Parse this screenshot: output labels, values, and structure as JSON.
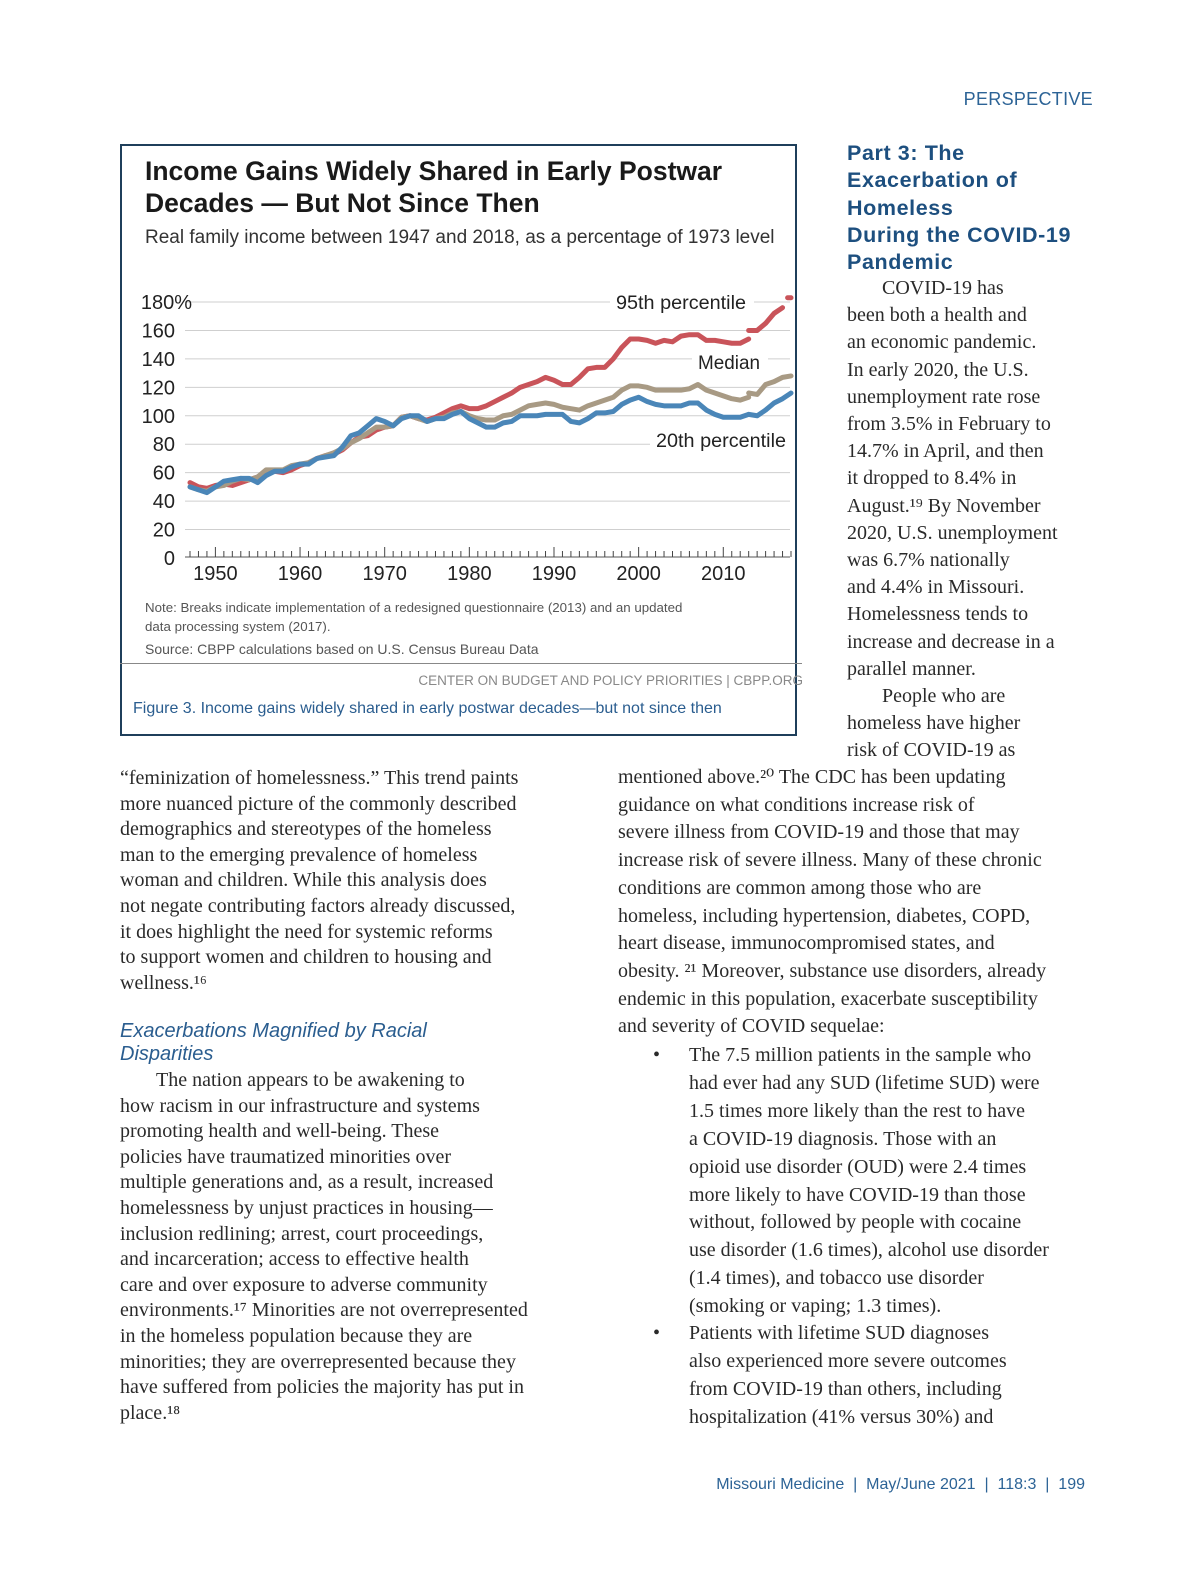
{
  "running_head": "PERSPECTIVE",
  "figure": {
    "caption": "Figure 3. Income gains widely shared in early postwar decades—but not since then"
  },
  "chart_data": {
    "type": "line",
    "title": "Income Gains Widely Shared in Early Postwar\nDecades — But Not Since Then",
    "subtitle": "Real family income between 1947 and 2018, as a percentage of 1973 level",
    "xlim": [
      1947,
      2018
    ],
    "ylim": [
      0,
      180
    ],
    "yticks": [
      {
        "v": 0,
        "label": "0"
      },
      {
        "v": 20,
        "label": "20"
      },
      {
        "v": 40,
        "label": "40"
      },
      {
        "v": 60,
        "label": "60"
      },
      {
        "v": 80,
        "label": "80"
      },
      {
        "v": 100,
        "label": "100"
      },
      {
        "v": 120,
        "label": "120"
      },
      {
        "v": 140,
        "label": "140"
      },
      {
        "v": 160,
        "label": "160"
      },
      {
        "v": 180,
        "label": "180%"
      }
    ],
    "xticks": [
      {
        "v": 1950,
        "label": "1950"
      },
      {
        "v": 1960,
        "label": "1960"
      },
      {
        "v": 1970,
        "label": "1970"
      },
      {
        "v": 1980,
        "label": "1980"
      },
      {
        "v": 1990,
        "label": "1990"
      },
      {
        "v": 2000,
        "label": "2000"
      },
      {
        "v": 2010,
        "label": "2010"
      }
    ],
    "grid": true,
    "series": [
      {
        "name": "95th percentile",
        "color": "#c9545a",
        "segments": [
          [
            [
              1947,
              53
            ],
            [
              1948,
              50
            ],
            [
              1949,
              49
            ],
            [
              1950,
              51
            ],
            [
              1951,
              52
            ],
            [
              1952,
              51
            ],
            [
              1953,
              53
            ],
            [
              1954,
              55
            ],
            [
              1955,
              57
            ],
            [
              1956,
              60
            ],
            [
              1957,
              61
            ],
            [
              1958,
              60
            ],
            [
              1959,
              62
            ],
            [
              1960,
              65
            ],
            [
              1961,
              67
            ],
            [
              1962,
              70
            ],
            [
              1963,
              72
            ],
            [
              1964,
              73
            ],
            [
              1965,
              76
            ],
            [
              1966,
              81
            ],
            [
              1967,
              85
            ],
            [
              1968,
              86
            ],
            [
              1969,
              90
            ],
            [
              1970,
              92
            ],
            [
              1971,
              93
            ],
            [
              1972,
              99
            ],
            [
              1973,
              100
            ],
            [
              1974,
              98
            ],
            [
              1975,
              97
            ],
            [
              1976,
              99
            ],
            [
              1977,
              102
            ],
            [
              1978,
              105
            ],
            [
              1979,
              107
            ],
            [
              1980,
              105
            ],
            [
              1981,
              105
            ],
            [
              1982,
              107
            ],
            [
              1983,
              110
            ],
            [
              1984,
              113
            ],
            [
              1985,
              116
            ],
            [
              1986,
              120
            ],
            [
              1987,
              122
            ],
            [
              1988,
              124
            ],
            [
              1989,
              127
            ],
            [
              1990,
              125
            ],
            [
              1991,
              122
            ],
            [
              1992,
              122
            ],
            [
              1993,
              127
            ],
            [
              1994,
              133
            ],
            [
              1995,
              134
            ],
            [
              1996,
              134
            ],
            [
              1997,
              140
            ],
            [
              1998,
              148
            ],
            [
              1999,
              154
            ],
            [
              2000,
              154
            ],
            [
              2001,
              153
            ],
            [
              2002,
              151
            ],
            [
              2003,
              153
            ],
            [
              2004,
              152
            ],
            [
              2005,
              156
            ],
            [
              2006,
              157
            ],
            [
              2007,
              157
            ],
            [
              2008,
              153
            ],
            [
              2009,
              153
            ],
            [
              2010,
              152
            ],
            [
              2011,
              151
            ],
            [
              2012,
              151
            ],
            [
              2013,
              154
            ]
          ],
          [
            [
              2013,
              160
            ],
            [
              2014,
              160
            ],
            [
              2015,
              165
            ],
            [
              2016,
              172
            ],
            [
              2017,
              176
            ]
          ],
          [
            [
              2017.6,
              183
            ],
            [
              2018,
              183
            ]
          ]
        ]
      },
      {
        "name": "Median",
        "color": "#a89a84",
        "segments": [
          [
            [
              1947,
              50
            ],
            [
              1948,
              48
            ],
            [
              1949,
              47
            ],
            [
              1950,
              50
            ],
            [
              1951,
              51
            ],
            [
              1952,
              54
            ],
            [
              1953,
              56
            ],
            [
              1954,
              55
            ],
            [
              1955,
              57
            ],
            [
              1956,
              62
            ],
            [
              1957,
              62
            ],
            [
              1958,
              62
            ],
            [
              1959,
              65
            ],
            [
              1960,
              66
            ],
            [
              1961,
              67
            ],
            [
              1962,
              70
            ],
            [
              1963,
              72
            ],
            [
              1964,
              74
            ],
            [
              1965,
              77
            ],
            [
              1966,
              81
            ],
            [
              1967,
              84
            ],
            [
              1968,
              88
            ],
            [
              1969,
              92
            ],
            [
              1970,
              92
            ],
            [
              1971,
              93
            ],
            [
              1972,
              99
            ],
            [
              1973,
              100
            ],
            [
              1974,
              98
            ],
            [
              1975,
              96
            ],
            [
              1976,
              98
            ],
            [
              1977,
              99
            ],
            [
              1978,
              102
            ],
            [
              1979,
              103
            ],
            [
              1980,
              100
            ],
            [
              1981,
              98
            ],
            [
              1982,
              97
            ],
            [
              1983,
              97
            ],
            [
              1984,
              100
            ],
            [
              1985,
              101
            ],
            [
              1986,
              104
            ],
            [
              1987,
              107
            ],
            [
              1988,
              108
            ],
            [
              1989,
              109
            ],
            [
              1990,
              108
            ],
            [
              1991,
              106
            ],
            [
              1992,
              105
            ],
            [
              1993,
              104
            ],
            [
              1994,
              107
            ],
            [
              1995,
              109
            ],
            [
              1996,
              111
            ],
            [
              1997,
              113
            ],
            [
              1998,
              118
            ],
            [
              1999,
              121
            ],
            [
              2000,
              121
            ],
            [
              2001,
              120
            ],
            [
              2002,
              118
            ],
            [
              2003,
              118
            ],
            [
              2004,
              118
            ],
            [
              2005,
              118
            ],
            [
              2006,
              119
            ],
            [
              2007,
              122
            ],
            [
              2008,
              118
            ],
            [
              2009,
              116
            ],
            [
              2010,
              114
            ],
            [
              2011,
              112
            ],
            [
              2012,
              111
            ],
            [
              2013,
              113
            ]
          ],
          [
            [
              2013,
              116
            ],
            [
              2014,
              115
            ],
            [
              2015,
              122
            ],
            [
              2016,
              124
            ],
            [
              2017,
              127
            ],
            [
              2018,
              128
            ]
          ]
        ]
      },
      {
        "name": "20th percentile",
        "color": "#4a86b8",
        "segments": [
          [
            [
              1947,
              50
            ],
            [
              1948,
              48
            ],
            [
              1949,
              46
            ],
            [
              1950,
              50
            ],
            [
              1951,
              54
            ],
            [
              1952,
              55
            ],
            [
              1953,
              56
            ],
            [
              1954,
              56
            ],
            [
              1955,
              53
            ],
            [
              1956,
              58
            ],
            [
              1957,
              61
            ],
            [
              1958,
              61
            ],
            [
              1959,
              64
            ],
            [
              1960,
              66
            ],
            [
              1961,
              66
            ],
            [
              1962,
              70
            ],
            [
              1963,
              71
            ],
            [
              1964,
              72
            ],
            [
              1965,
              78
            ],
            [
              1966,
              86
            ],
            [
              1967,
              88
            ],
            [
              1968,
              93
            ],
            [
              1969,
              98
            ],
            [
              1970,
              96
            ],
            [
              1971,
              93
            ],
            [
              1972,
              98
            ],
            [
              1973,
              100
            ],
            [
              1974,
              100
            ],
            [
              1975,
              96
            ],
            [
              1976,
              98
            ],
            [
              1977,
              98
            ],
            [
              1978,
              101
            ],
            [
              1979,
              103
            ],
            [
              1980,
              98
            ],
            [
              1981,
              95
            ],
            [
              1982,
              92
            ],
            [
              1983,
              92
            ],
            [
              1984,
              95
            ],
            [
              1985,
              96
            ],
            [
              1986,
              100
            ],
            [
              1987,
              100
            ],
            [
              1988,
              100
            ],
            [
              1989,
              101
            ],
            [
              1990,
              101
            ],
            [
              1991,
              101
            ],
            [
              1992,
              96
            ],
            [
              1993,
              95
            ],
            [
              1994,
              98
            ],
            [
              1995,
              102
            ],
            [
              1996,
              102
            ],
            [
              1997,
              103
            ],
            [
              1998,
              108
            ],
            [
              1999,
              111
            ],
            [
              2000,
              113
            ],
            [
              2001,
              110
            ],
            [
              2002,
              108
            ],
            [
              2003,
              107
            ],
            [
              2004,
              107
            ],
            [
              2005,
              107
            ],
            [
              2006,
              109
            ],
            [
              2007,
              109
            ],
            [
              2008,
              104
            ],
            [
              2009,
              101
            ],
            [
              2010,
              99
            ],
            [
              2011,
              99
            ],
            [
              2012,
              99
            ],
            [
              2013,
              101
            ]
          ],
          [
            [
              2013,
              101
            ],
            [
              2014,
              100
            ],
            [
              2015,
              104
            ],
            [
              2016,
              109
            ],
            [
              2017,
              112
            ],
            [
              2018,
              116
            ]
          ]
        ]
      }
    ],
    "note": "Note: Breaks indicate implementation of a redesigned questionnaire (2013) and an updated\ndata processing system (2017).",
    "source": "Source: CBPP calculations based on U.S. Census Bureau Data",
    "credit": "CENTER ON BUDGET AND POLICY PRIORITIES | CBPP.ORG"
  },
  "right_column": {
    "headline": "Part 3: The\nExacerbation of\nHomeless\nDuring the COVID-19\nPandemic",
    "para1": "COVID-19 has\nbeen both a health and\nan economic pandemic.\nIn early 2020, the U.S.\nunemployment rate rose\nfrom 3.5% in February to\n14.7% in April, and then\nit dropped to 8.4% in\nAugust.¹⁹  By November\n2020, U.S. unemployment\nwas 6.7% nationally\nand 4.4% in Missouri.\nHomelessness tends to\nincrease and decrease in a\nparallel manner.",
    "para2_start": "People who are\nhomeless have higher\nrisk of COVID-19 as",
    "para2_cont": "mentioned above.²⁰ The CDC has been updating\nguidance on what conditions increase risk of\nsevere illness from COVID-19 and those that may\nincrease risk of severe illness. Many of these chronic\nconditions are common among those who are\nhomeless, including hypertension, diabetes, COPD,\nheart disease, immunocompromised states, and\nobesity. ²¹ Moreover, substance use disorders, already\nendemic in this population, exacerbate susceptibility\nand severity of COVID sequelae:",
    "bullet_symbol": "•",
    "bullets": [
      "The 7.5 million patients in the sample who\nhad ever had any SUD (lifetime SUD) were\n1.5 times more likely than the rest to have\na COVID-19 diagnosis. Those with an\nopioid use disorder (OUD) were 2.4 times\nmore likely to have COVID-19 than those\nwithout, followed by people with cocaine\nuse disorder (1.6 times), alcohol use disorder\n(1.4 times), and tobacco use disorder\n(smoking or vaping; 1.3 times).",
      "Patients with lifetime SUD diagnoses\nalso experienced more severe outcomes\nfrom COVID-19 than others, including\nhospitalization (41% versus 30%) and"
    ]
  },
  "left_column": {
    "para1": "“feminization of homelessness.” This trend paints\nmore nuanced picture of the commonly described\ndemographics and stereotypes of the homeless\nman to the emerging prevalence of homeless\nwoman and children. While this analysis does\nnot negate contributing factors already discussed,\nit does highlight the need for systemic reforms\nto support women and children to housing and\nwellness.¹⁶",
    "heading": "Exacerbations Magnified by Racial\nDisparities",
    "para2": "The nation appears to be awakening to\nhow racism in our infrastructure and systems\npromoting health and well-being. These\npolicies have traumatized minorities over\nmultiple generations and, as a result, increased\nhomelessness by unjust practices in housing—\ninclusion redlining; arrest, court proceedings,\nand incarceration; access to effective health\ncare and over exposure to adverse community\nenvironments.¹⁷ Minorities are not overrepresented\nin the homeless population because they are\nminorities; they are overrepresented because they\nhave suffered from policies the majority has put in\nplace.¹⁸"
  },
  "footer": "Missouri Medicine  |  May/June 2021  |  118:3  |  199"
}
